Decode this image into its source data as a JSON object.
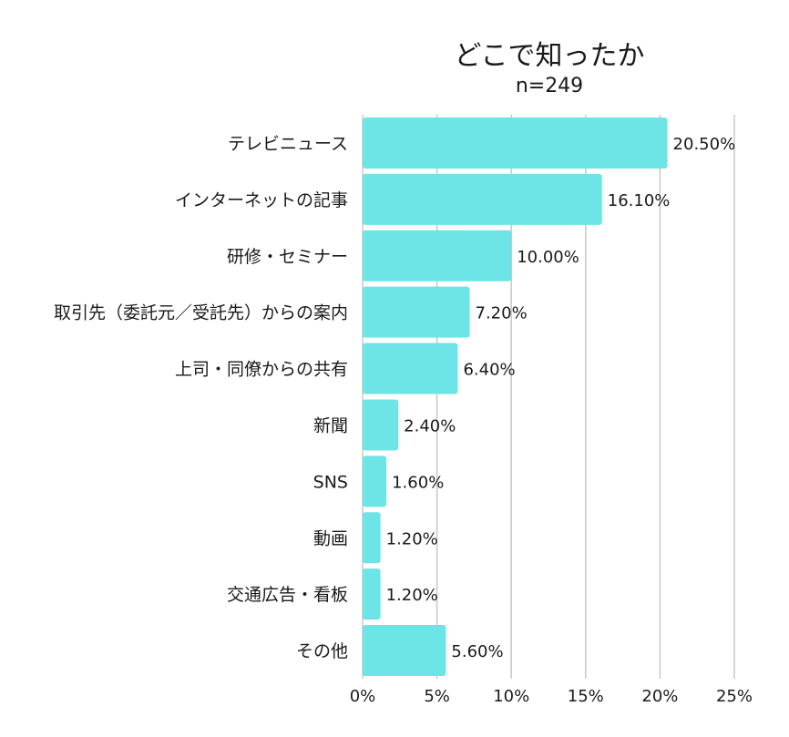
{
  "chart_data": {
    "type": "bar",
    "orientation": "horizontal",
    "title": "どこで知ったか",
    "subtitle": "n=249",
    "xlabel": "",
    "ylabel": "",
    "categories": [
      "テレビニュース",
      "インターネットの記事",
      "研修・セミナー",
      "取引先（委託元／受託先）からの案内",
      "上司・同僚からの共有",
      "新聞",
      "SNS",
      "動画",
      "交通広告・看板",
      "その他"
    ],
    "values": [
      20.5,
      16.1,
      10.0,
      7.2,
      6.4,
      2.4,
      1.6,
      1.2,
      1.2,
      5.6
    ],
    "value_labels": [
      "20.50%",
      "16.10%",
      "10.00%",
      "7.20%",
      "6.40%",
      "2.40%",
      "1.60%",
      "1.20%",
      "1.20%",
      "5.60%"
    ],
    "xlim": [
      0,
      25
    ],
    "xticks": [
      0,
      5,
      10,
      15,
      20,
      25
    ],
    "xtick_labels": [
      "0%",
      "5%",
      "10%",
      "15%",
      "20%",
      "25%"
    ],
    "grid": true,
    "legend": "none",
    "bar_color": "#6de4e6",
    "grid_color": "#c8c8c8"
  }
}
